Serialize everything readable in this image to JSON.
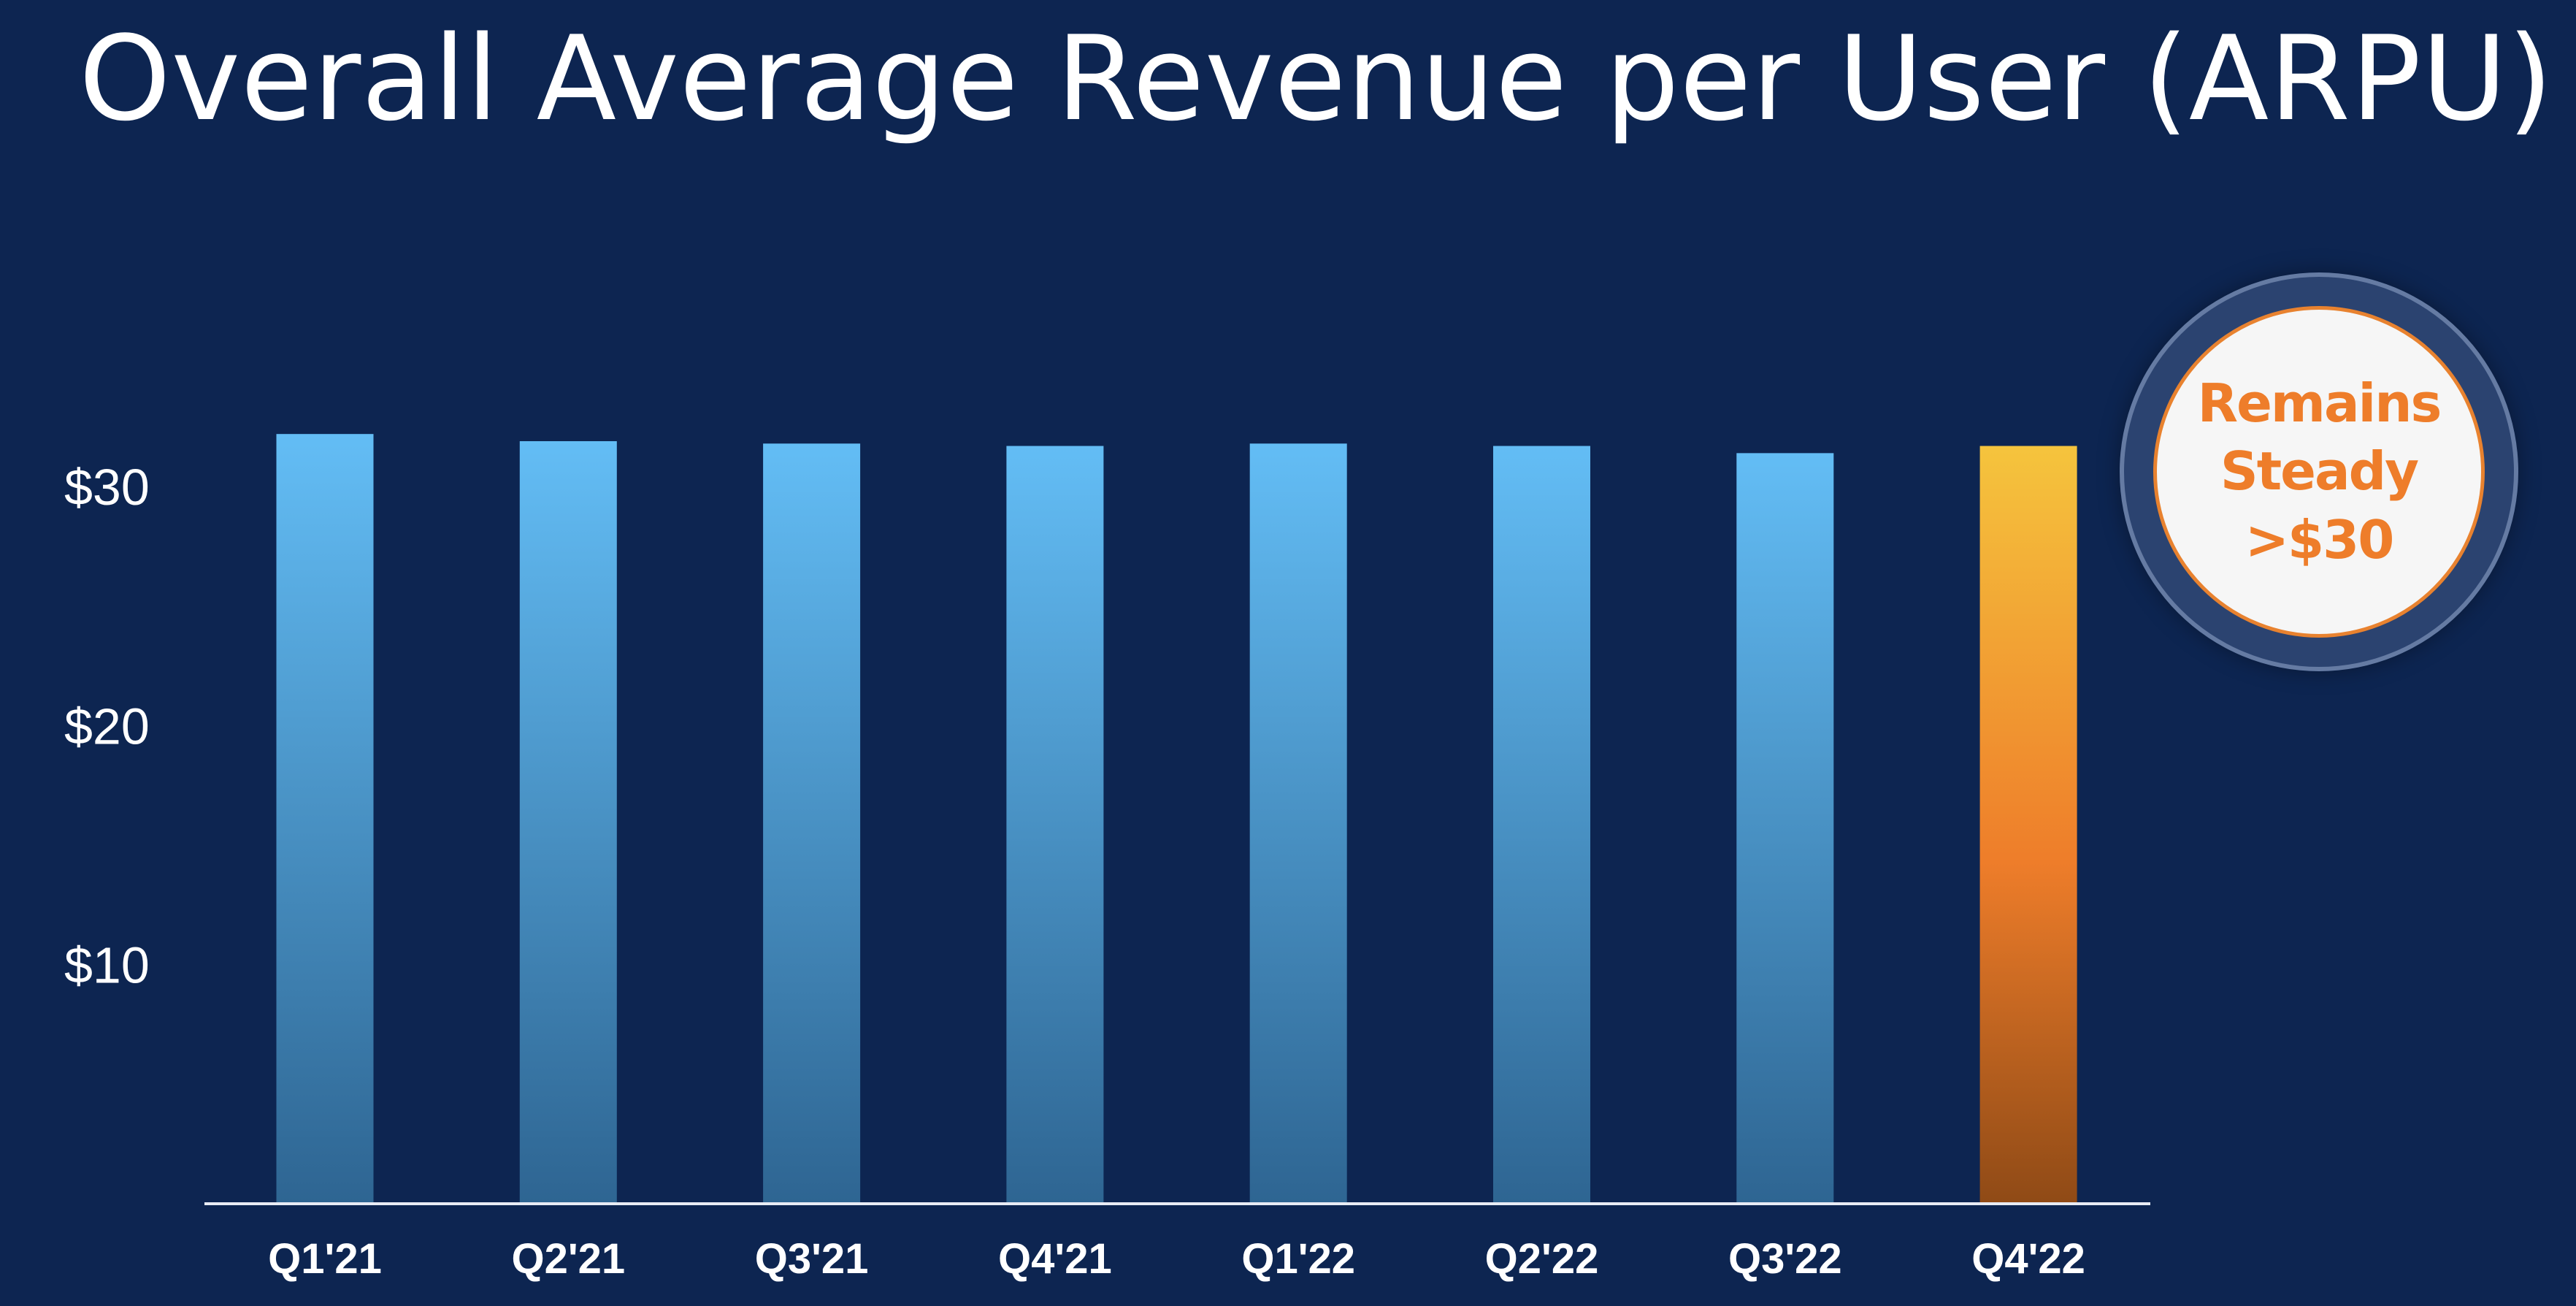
{
  "page": {
    "title": "Overall Average Revenue per User (ARPU)"
  },
  "callout": {
    "lines": [
      "Remains",
      "Steady",
      ">$30"
    ],
    "text_color": "#ee7d2a",
    "border_color": "#e8822f"
  },
  "colors": {
    "background": "#0d2551",
    "bar_top": "#63bdf5",
    "bar_bottom": "#2e6592",
    "highlight_top": "#f5c43d",
    "highlight_mid": "#ee7d2a",
    "highlight_bottom": "#8f4a16"
  },
  "chart_data": {
    "type": "bar",
    "categories": [
      "Q1'21",
      "Q2'21",
      "Q3'21",
      "Q4'21",
      "Q1'22",
      "Q2'22",
      "Q3'22",
      "Q4'22"
    ],
    "values": [
      32.2,
      31.9,
      31.8,
      31.7,
      31.8,
      31.7,
      31.4,
      31.7
    ],
    "highlight_index": 7,
    "ylim": [
      0,
      38.5
    ],
    "yticks": [
      10,
      20,
      30
    ],
    "ytick_labels": [
      "$10",
      "$20",
      "$30"
    ],
    "reference_line": 30,
    "grid": true,
    "legend": "none"
  }
}
